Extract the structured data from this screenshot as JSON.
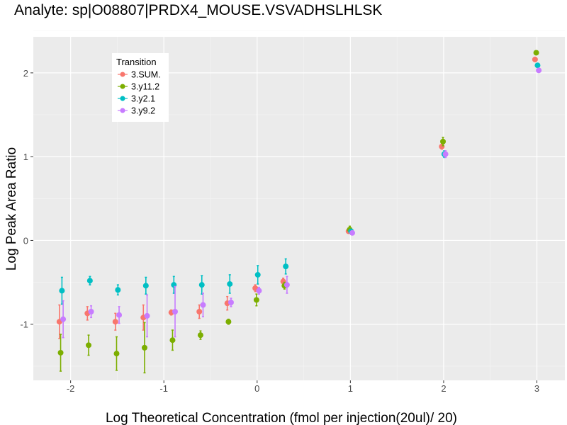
{
  "chart_data": {
    "type": "scatter",
    "title": "Analyte: sp|O08807|PRDX4_MOUSE.VSVADHSLHLSK",
    "xlabel": "Log Theoretical Concentration (fmol per injection(20ul)/ 20)",
    "ylabel": "Log Peak Area Ratio",
    "xlim": [
      -2.4,
      3.3
    ],
    "ylim": [
      -1.67,
      2.43
    ],
    "xticks": [
      -2,
      -1,
      0,
      1,
      2,
      3
    ],
    "xtick_labels": [
      "-2",
      "-1",
      "0",
      "1",
      "2",
      "3"
    ],
    "yticks": [
      -1,
      0,
      1,
      2
    ],
    "ytick_labels": [
      "-1",
      "0",
      "1",
      "2"
    ],
    "grid": true,
    "legend": {
      "title": "Transition",
      "placement": "top-left"
    },
    "x": [
      -2.1,
      -1.8,
      -1.5,
      -1.2,
      -0.9,
      -0.6,
      -0.3,
      0,
      0.3,
      1,
      2,
      3
    ],
    "series": [
      {
        "name": "3.SUM.",
        "color": "#F8766D",
        "values": [
          -0.97,
          -0.87,
          -0.97,
          -0.92,
          -0.86,
          -0.85,
          -0.75,
          -0.57,
          -0.49,
          0.11,
          1.12,
          2.16
        ],
        "err": [
          0.2,
          0.08,
          0.1,
          0.15,
          0.03,
          0.08,
          0.08,
          0.04,
          0.04,
          0.02,
          0.03,
          0.02
        ]
      },
      {
        "name": "3.y11.2",
        "color": "#7CAE00",
        "values": [
          -1.34,
          -1.25,
          -1.35,
          -1.28,
          -1.19,
          -1.13,
          -0.97,
          -0.71,
          -0.54,
          0.13,
          1.18,
          2.24
        ],
        "err": [
          0.22,
          0.12,
          0.2,
          0.3,
          0.12,
          0.05,
          0.03,
          0.07,
          0.04,
          0.04,
          0.05,
          0.02
        ]
      },
      {
        "name": "3.y2.1",
        "color": "#00BFC4",
        "values": [
          -0.6,
          -0.48,
          -0.59,
          -0.54,
          -0.53,
          -0.53,
          -0.52,
          -0.41,
          -0.31,
          0.11,
          1.03,
          2.09
        ],
        "err": [
          0.16,
          0.05,
          0.06,
          0.1,
          0.1,
          0.11,
          0.11,
          0.11,
          0.09,
          0.02,
          0.04,
          0.02
        ]
      },
      {
        "name": "3.y9.2",
        "color": "#C77CFF",
        "values": [
          -0.94,
          -0.85,
          -0.89,
          -0.9,
          -0.85,
          -0.77,
          -0.74,
          -0.6,
          -0.53,
          0.09,
          1.03,
          2.03
        ],
        "err": [
          0.22,
          0.07,
          0.1,
          0.25,
          0.3,
          0.14,
          0.05,
          0.04,
          0.1,
          0.02,
          0.04,
          0.02
        ]
      }
    ]
  }
}
